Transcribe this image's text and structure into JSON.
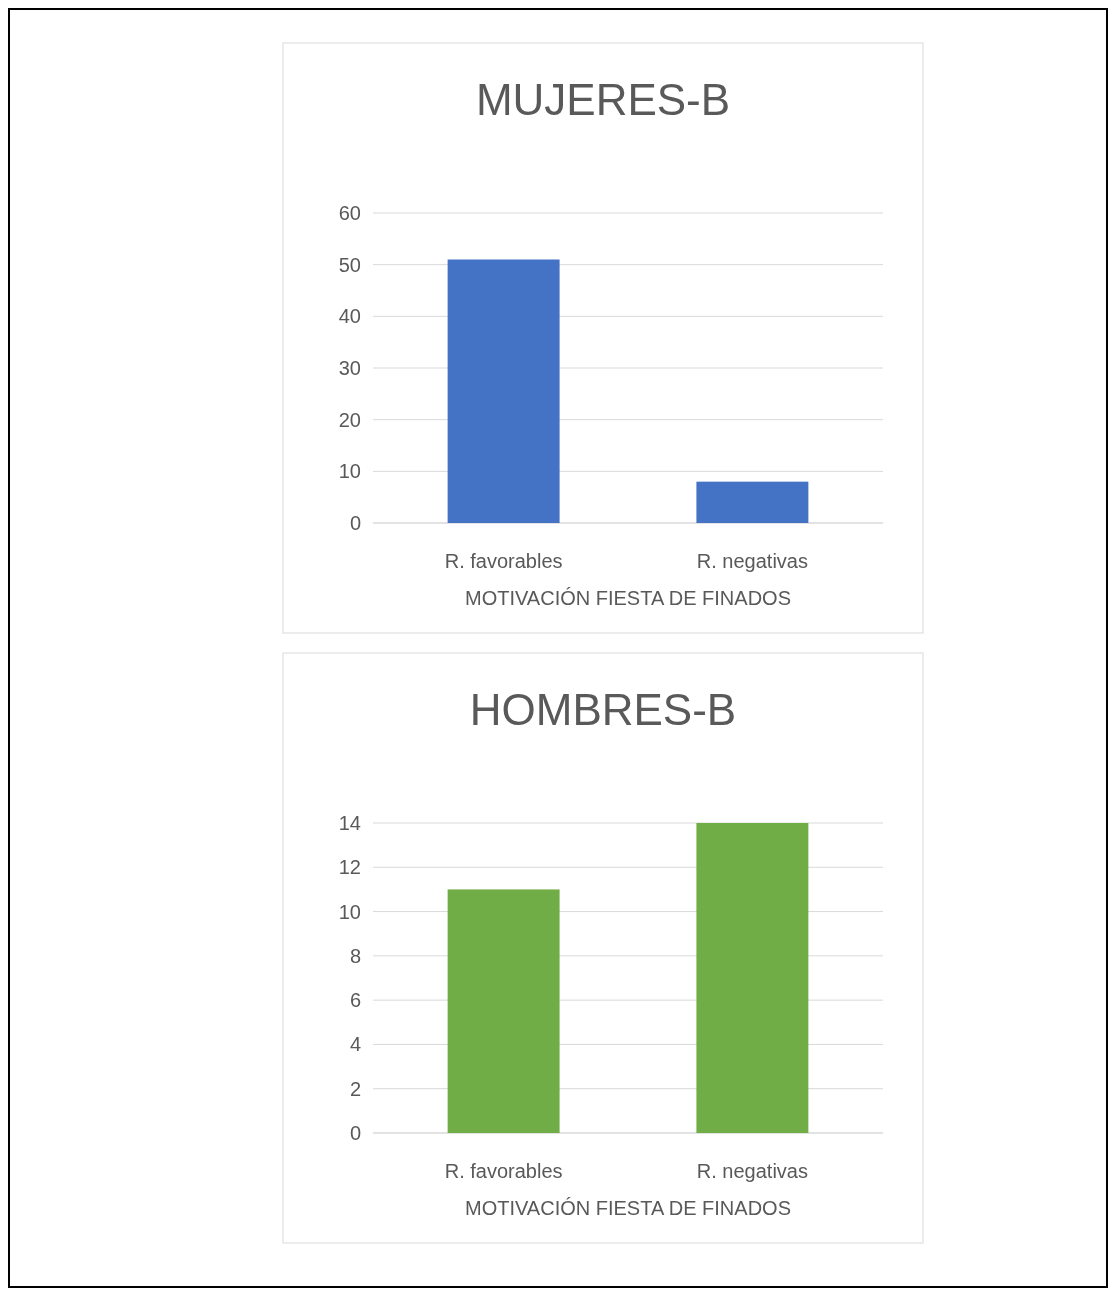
{
  "chart_data": [
    {
      "type": "bar",
      "title": "MUJERES-B",
      "xlabel": "MOTIVACIÓN FIESTA DE FINADOS",
      "categories": [
        "R. favorables",
        "R. negativas"
      ],
      "values": [
        51,
        8
      ],
      "color": "#4472c4",
      "ylim": [
        0,
        60
      ],
      "yticks": [
        0,
        10,
        20,
        30,
        40,
        50,
        60
      ],
      "grid": true
    },
    {
      "type": "bar",
      "title": "HOMBRES-B",
      "xlabel": "MOTIVACIÓN FIESTA DE FINADOS",
      "categories": [
        "R. favorables",
        "R. negativas"
      ],
      "values": [
        11,
        14
      ],
      "color": "#70ad47",
      "ylim": [
        0,
        14
      ],
      "yticks": [
        0,
        2,
        4,
        6,
        8,
        10,
        12,
        14
      ],
      "grid": true
    }
  ]
}
